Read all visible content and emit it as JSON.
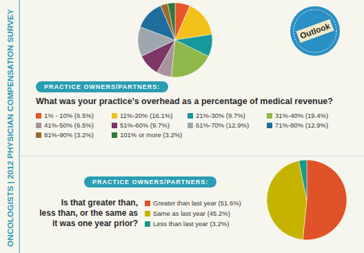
{
  "banner": "ONCOLOGISTS | 2012 PHYSICIAN COMPENSATION SURVEY",
  "badge": "Outlook",
  "chart_data": [
    {
      "type": "pie",
      "subtitle": "PRACTICE OWNERS/PARTNERS:",
      "title": "What was your practice’s overhead as a percentage of medical revenue?",
      "categories": [
        "1% - 10% (6.5%)",
        "11%-20% (16.1%)",
        "21%-30% (9.7%)",
        "31%-40% (19.4%)",
        "41%-50% (6.5%)",
        "51%-60% (9.7%)",
        "61%-70% (12.9%)",
        "71%-80% (12.9%)",
        "81%-90% (3.2%)",
        "101% or more (3.2%)"
      ],
      "values": [
        6.5,
        16.1,
        9.7,
        19.4,
        6.5,
        9.7,
        12.9,
        12.9,
        3.2,
        3.2
      ],
      "colors": [
        "#e8552b",
        "#f2c21b",
        "#16999b",
        "#8fb84a",
        "#a8949a",
        "#7b3566",
        "#9ea7ad",
        "#1e6d9c",
        "#9a6a2c",
        "#2e7a3c"
      ]
    },
    {
      "type": "pie",
      "subtitle": "PRACTICE OWNERS/PARTNERS:",
      "title": "Is that greater than,\nless than, or the same as\nit was one year prior?",
      "categories": [
        "Greater than last year (51.6%)",
        "Same as last year (45.2%)",
        "Less than last year (3.2%)"
      ],
      "values": [
        51.6,
        45.2,
        3.2
      ],
      "colors": [
        "#e0532a",
        "#c6b300",
        "#17998a"
      ]
    }
  ]
}
